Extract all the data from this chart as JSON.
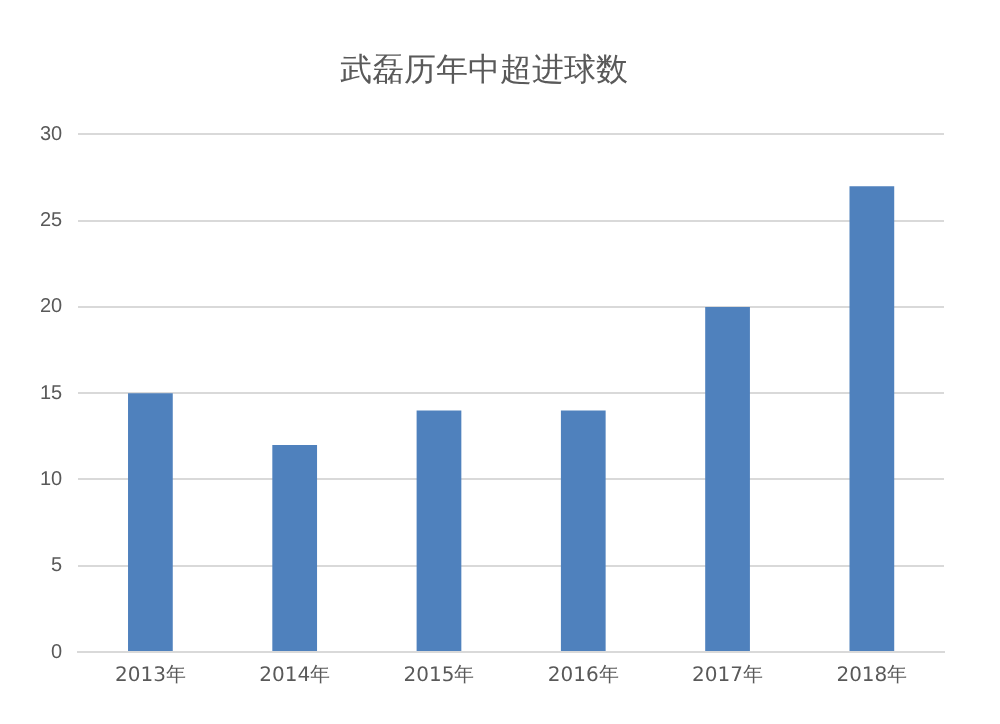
{
  "chart_data": {
    "type": "bar",
    "title": "武磊历年中超进球数",
    "categories": [
      "2013年",
      "2014年",
      "2015年",
      "2016年",
      "2017年",
      "2018年"
    ],
    "values": [
      15,
      12,
      14,
      14,
      20,
      27
    ],
    "color": "#4f81bd",
    "ylim": [
      0,
      30
    ],
    "yticks": [
      0,
      5,
      10,
      15,
      20,
      25,
      30
    ],
    "grid": "y",
    "legend": false
  }
}
